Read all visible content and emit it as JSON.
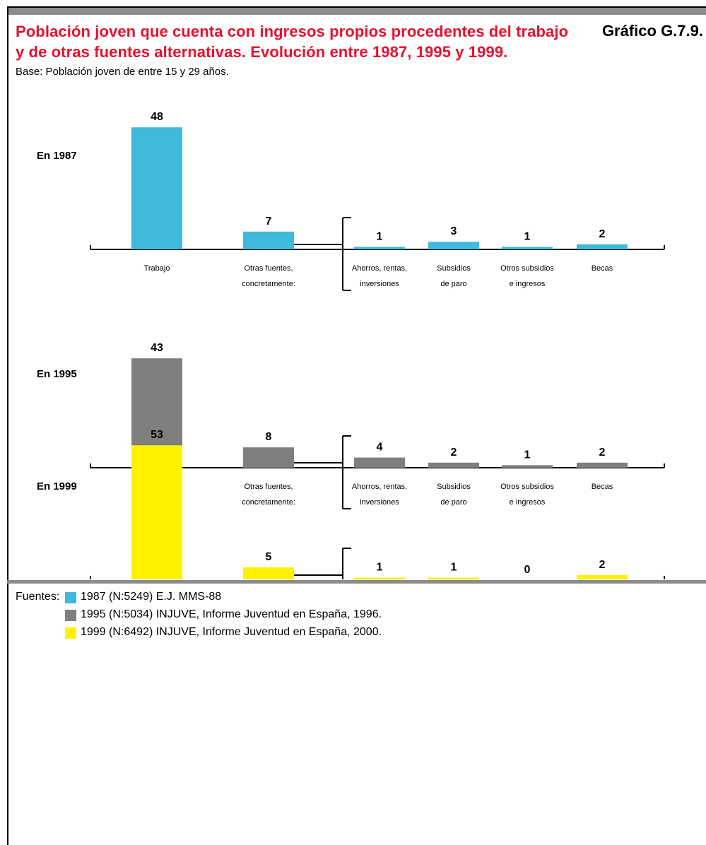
{
  "header": {
    "title": "Población joven que cuenta con ingresos propios procedentes del trabajo y de otras fuentes alternativas. Evolución entre 1987, 1995 y 1999.",
    "chart_id": "Gráfico G.7.9.",
    "subtitle": "Base: Población joven de entre 15 y 29 años."
  },
  "colors": {
    "title": "#e8112d",
    "1987": "#3fb9dc",
    "1995": "#7f7f7f",
    "1999": "#fff200"
  },
  "chart_data": [
    {
      "type": "bar",
      "panel_label": "En 1987",
      "categories": [
        "Trabajo",
        "Otras fuentes, concretamente:",
        "Ahorros, rentas, inversiones",
        "Subsidios de paro",
        "Otros subsidios e ingresos",
        "Becas"
      ],
      "values": [
        48,
        7,
        1,
        3,
        1,
        2
      ],
      "color": "#3fb9dc"
    },
    {
      "type": "bar",
      "panel_label": "En 1995",
      "categories": [
        "Trabajo",
        "Otras fuentes, concretamente:",
        "Ahorros, rentas, inversiones",
        "Subsidios de paro",
        "Otros subsidios e ingresos",
        "Becas"
      ],
      "values": [
        43,
        8,
        4,
        2,
        1,
        2
      ],
      "color": "#7f7f7f"
    },
    {
      "type": "bar",
      "panel_label": "En 1999",
      "categories": [
        "Trabajo",
        "Otras fuentes, concretamente:",
        "Ahorros, rentas, inversiones",
        "Subsidios de paro",
        "Otros subsidios e ingresos",
        "Becas"
      ],
      "values": [
        53,
        5,
        1,
        1,
        0,
        2
      ],
      "color": "#fff200"
    }
  ],
  "sources": {
    "label": "Fuentes:",
    "items": [
      {
        "text": "1987 (N:5249) E.J. MMS-88",
        "color": "#3fb9dc"
      },
      {
        "text": "1995 (N:5034) INJUVE, Informe Juventud en España, 1996.",
        "color": "#7f7f7f"
      },
      {
        "text": "1999 (N:6492) INJUVE, Informe Juventud en España,  2000.",
        "color": "#fff200"
      }
    ]
  }
}
